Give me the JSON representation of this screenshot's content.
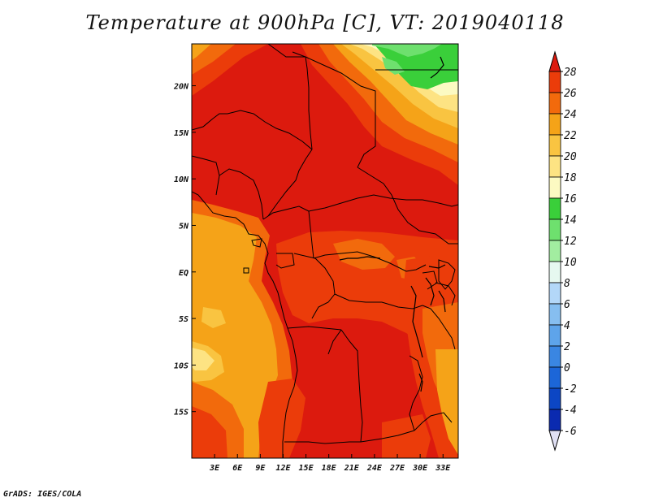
{
  "title": "Temperature at 900hPa [C], VT: 2019040118",
  "credit": "GrADS: IGES/COLA",
  "map": {
    "lon_range": [
      0,
      35
    ],
    "lat_range": [
      -20,
      24.5
    ],
    "lon_ticks": [
      "3E",
      "6E",
      "9E",
      "12E",
      "15E",
      "18E",
      "21E",
      "24E",
      "27E",
      "30E",
      "33E"
    ],
    "lon_values": [
      3,
      6,
      9,
      12,
      15,
      18,
      21,
      24,
      27,
      30,
      33
    ],
    "lat_ticks": [
      "20N",
      "15N",
      "10N",
      "5N",
      "EQ",
      "5S",
      "10S",
      "15S"
    ],
    "lat_values": [
      20,
      15,
      10,
      5,
      0,
      -5,
      -10,
      -15
    ]
  },
  "colorbar": {
    "labels": [
      "28",
      "26",
      "24",
      "22",
      "20",
      "18",
      "16",
      "14",
      "12",
      "10",
      "8",
      "6",
      "4",
      "2",
      "0",
      "-2",
      "-4",
      "-6"
    ],
    "colors": [
      "#dc1a0e",
      "#eb3c0a",
      "#f26a0c",
      "#f5a318",
      "#f9c441",
      "#fde383",
      "#fcfac2",
      "#3acf3a",
      "#6ee06e",
      "#a2eda0",
      "#e6f8f0",
      "#b3d7f8",
      "#86bef0",
      "#5ea4ea",
      "#3a86e2",
      "#1c66d8",
      "#0c46c4",
      "#0a2ab0",
      "#06138e"
    ],
    "top_cap_color": "#dc1a0e",
    "bottom_cap_color": "#e0e0f4"
  },
  "colors": {
    "t28": "#dc1a0e",
    "t26": "#eb3c0a",
    "t24": "#f26a0c",
    "t22": "#f5a318",
    "t20": "#f9c441",
    "t18": "#fde383",
    "t16": "#fcfac2",
    "t14": "#3acf3a",
    "t12": "#6ee06e"
  }
}
